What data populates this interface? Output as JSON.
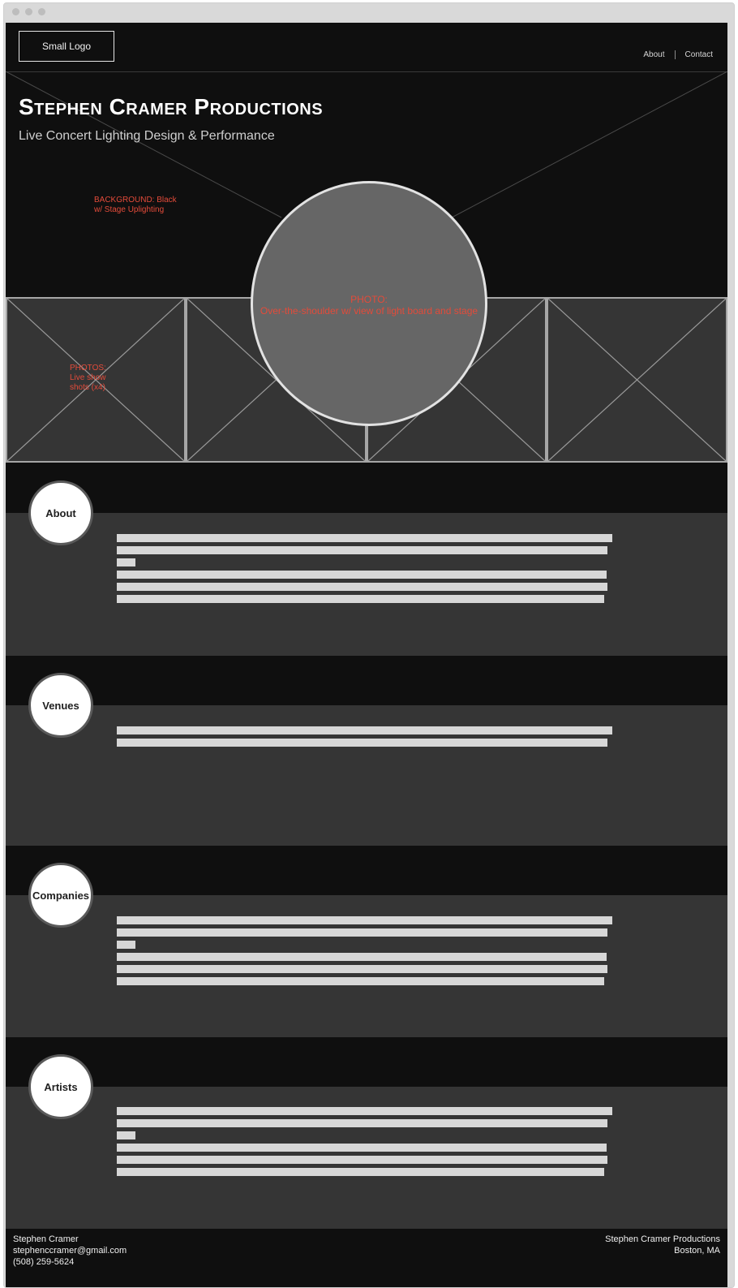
{
  "header": {
    "logo_label": "Small Logo",
    "nav": [
      "About",
      "Contact"
    ]
  },
  "hero": {
    "title": "Stephen Cramer Productions",
    "subtitle": "Live Concert Lighting Design & Performance",
    "background_note": [
      "BACKGROUND: Black",
      "w/ Stage Uplighting"
    ],
    "photos_note": [
      "PHOTOS:",
      "Live show",
      "shots (x4)"
    ],
    "circle_note": [
      "PHOTO:",
      "Over-the-shoulder w/ view of light board and stage"
    ]
  },
  "sections": [
    {
      "label": "About"
    },
    {
      "label": "Venues"
    },
    {
      "label": "Companies"
    },
    {
      "label": "Artists"
    }
  ],
  "footer": {
    "name": "Stephen Cramer",
    "email": "stephenccramer@gmail.com",
    "phone": "(508) 259-5624",
    "company": "Stephen Cramer Productions",
    "location": "Boston, MA"
  },
  "colors": {
    "page_bg": "#0f0f0f",
    "panel_bg": "#353535",
    "annotation_red": "#e34b3a",
    "bar_gray": "#d7d7d7"
  }
}
